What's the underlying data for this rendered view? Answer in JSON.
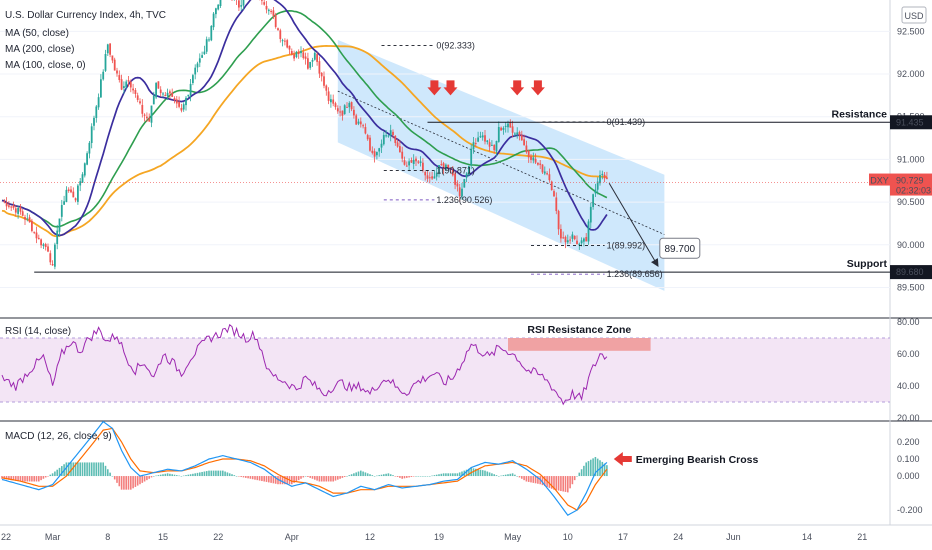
{
  "header": {
    "title": "U.S. Dollar Currency Index, 4h, TVC",
    "currency": "USD",
    "legend": [
      "MA (50, close)",
      "MA (200, close)",
      "MA (100, close, 0)"
    ]
  },
  "colors": {
    "up": "#26a69a",
    "down": "#ef5350",
    "ma50": "#3b2e9e",
    "ma200": "#f5a623",
    "ma100": "#2e9e4f",
    "channel": "#bbdefb",
    "rsi": "#9c27b0",
    "rsi_band": "#f3e5f5",
    "macd": "#2196f3",
    "signal": "#ff6d00",
    "arrow": "#e53935",
    "axis_bg": "#ffffff"
  },
  "chart_data": [
    {
      "name": "price",
      "type": "candlestick",
      "ylim": [
        89.4,
        92.75
      ],
      "y_ticks": [
        "92.500",
        "92.000",
        "91.500",
        "91.000",
        "90.500",
        "90.000",
        "89.500"
      ],
      "x_ticks": [
        "22",
        "Mar",
        "8",
        "15",
        "22",
        "Apr",
        "12",
        "19",
        "May",
        "10",
        "17",
        "24",
        "Jun",
        "14",
        "21"
      ],
      "current_price": "90.729",
      "countdown": "02:32:03",
      "symbol_tag": "DXY",
      "levels": [
        {
          "label": "Resistance",
          "value": "91.435"
        },
        {
          "label": "Support",
          "value": "89.680"
        }
      ],
      "fib_labels": [
        "0(92.333)",
        "0(91.439)",
        "1(90.871)",
        "1.236(90.526)",
        "1(89.992)",
        "1.236(89.656)"
      ],
      "target_label": "89.700",
      "path": [
        [
          0,
          90.52
        ],
        [
          4,
          90.45
        ],
        [
          8,
          90.38
        ],
        [
          12,
          90.25
        ],
        [
          16,
          90.05
        ],
        [
          20,
          89.95
        ],
        [
          22,
          89.72
        ],
        [
          24,
          90.2
        ],
        [
          28,
          90.65
        ],
        [
          32,
          90.55
        ],
        [
          36,
          90.95
        ],
        [
          40,
          91.5
        ],
        [
          43,
          91.9
        ],
        [
          46,
          92.35
        ],
        [
          49,
          92.05
        ],
        [
          52,
          91.85
        ],
        [
          55,
          91.95
        ],
        [
          58,
          91.75
        ],
        [
          61,
          91.55
        ],
        [
          64,
          91.45
        ],
        [
          67,
          91.9
        ],
        [
          70,
          91.75
        ],
        [
          72,
          91.8
        ],
        [
          75,
          91.65
        ],
        [
          78,
          91.55
        ],
        [
          81,
          91.8
        ],
        [
          84,
          92.1
        ],
        [
          87,
          92.2
        ],
        [
          90,
          92.45
        ],
        [
          92,
          92.7
        ],
        [
          94,
          92.85
        ],
        [
          97,
          92.95
        ],
        [
          100,
          92.9
        ],
        [
          103,
          92.8
        ],
        [
          106,
          92.95
        ],
        [
          109,
          93.05
        ],
        [
          112,
          92.95
        ],
        [
          115,
          92.8
        ],
        [
          118,
          92.65
        ],
        [
          121,
          92.45
        ],
        [
          124,
          92.35
        ],
        [
          127,
          92.2
        ],
        [
          130,
          92.3
        ],
        [
          133,
          92.1
        ],
        [
          136,
          92.25
        ],
        [
          139,
          91.95
        ],
        [
          142,
          91.7
        ],
        [
          145,
          91.6
        ],
        [
          148,
          91.55
        ],
        [
          151,
          91.7
        ],
        [
          154,
          91.45
        ],
        [
          157,
          91.4
        ],
        [
          160,
          91.1
        ],
        [
          163,
          91.05
        ],
        [
          166,
          91.25
        ],
        [
          169,
          91.3
        ],
        [
          172,
          91.15
        ],
        [
          175,
          90.9
        ],
        [
          178,
          90.95
        ],
        [
          181,
          91.0
        ],
        [
          184,
          90.8
        ],
        [
          187,
          90.75
        ],
        [
          190,
          90.9
        ],
        [
          193,
          90.95
        ],
        [
          196,
          90.8
        ],
        [
          199,
          90.6
        ],
        [
          202,
          90.85
        ],
        [
          205,
          91.2
        ],
        [
          208,
          91.3
        ],
        [
          211,
          91.2
        ],
        [
          214,
          91.1
        ],
        [
          216,
          91.35
        ],
        [
          219,
          91.4
        ],
        [
          222,
          91.35
        ],
        [
          225,
          91.3
        ],
        [
          228,
          91.1
        ],
        [
          231,
          91.0
        ],
        [
          234,
          90.9
        ],
        [
          237,
          90.85
        ],
        [
          240,
          90.6
        ],
        [
          242,
          90.15
        ],
        [
          245,
          90.05
        ],
        [
          248,
          90.1
        ],
        [
          251,
          90.0
        ],
        [
          254,
          90.05
        ],
        [
          257,
          90.6
        ],
        [
          260,
          90.85
        ],
        [
          263,
          90.73
        ]
      ]
    },
    {
      "name": "RSI",
      "type": "line",
      "title": "RSI (14, close)",
      "ylim": [
        20,
        80
      ],
      "y_ticks": [
        "80.00",
        "60.00",
        "40.00",
        "20.00"
      ],
      "band": [
        30,
        70
      ],
      "annotation": "RSI Resistance Zone",
      "values": [
        [
          0,
          45
        ],
        [
          6,
          40
        ],
        [
          12,
          50
        ],
        [
          18,
          58
        ],
        [
          22,
          40
        ],
        [
          26,
          60
        ],
        [
          30,
          68
        ],
        [
          34,
          62
        ],
        [
          38,
          70
        ],
        [
          42,
          75
        ],
        [
          46,
          68
        ],
        [
          50,
          72
        ],
        [
          54,
          58
        ],
        [
          58,
          50
        ],
        [
          62,
          55
        ],
        [
          66,
          45
        ],
        [
          70,
          60
        ],
        [
          74,
          55
        ],
        [
          78,
          48
        ],
        [
          82,
          58
        ],
        [
          86,
          64
        ],
        [
          90,
          70
        ],
        [
          94,
          72
        ],
        [
          98,
          76
        ],
        [
          102,
          74
        ],
        [
          106,
          70
        ],
        [
          110,
          72
        ],
        [
          113,
          62
        ],
        [
          116,
          48
        ],
        [
          120,
          45
        ],
        [
          124,
          42
        ],
        [
          128,
          38
        ],
        [
          132,
          45
        ],
        [
          136,
          40
        ],
        [
          140,
          35
        ],
        [
          144,
          40
        ],
        [
          148,
          42
        ],
        [
          152,
          38
        ],
        [
          156,
          40
        ],
        [
          160,
          35
        ],
        [
          164,
          42
        ],
        [
          168,
          45
        ],
        [
          172,
          38
        ],
        [
          176,
          36
        ],
        [
          180,
          42
        ],
        [
          184,
          45
        ],
        [
          188,
          48
        ],
        [
          192,
          42
        ],
        [
          196,
          45
        ],
        [
          200,
          55
        ],
        [
          204,
          66
        ],
        [
          208,
          62
        ],
        [
          212,
          58
        ],
        [
          216,
          64
        ],
        [
          220,
          62
        ],
        [
          224,
          58
        ],
        [
          228,
          50
        ],
        [
          232,
          48
        ],
        [
          236,
          45
        ],
        [
          240,
          38
        ],
        [
          244,
          30
        ],
        [
          248,
          35
        ],
        [
          252,
          32
        ],
        [
          256,
          48
        ],
        [
          260,
          60
        ],
        [
          263,
          58
        ]
      ]
    },
    {
      "name": "MACD",
      "type": "line",
      "title": "MACD (12, 26, close, 9)",
      "ylim": [
        -0.27,
        0.3
      ],
      "y_ticks": [
        "0.200",
        "0.100",
        "0.000",
        "-0.200"
      ],
      "annotation": "Emerging Bearish Cross",
      "macd": [
        [
          0,
          -0.02
        ],
        [
          8,
          -0.05
        ],
        [
          16,
          -0.08
        ],
        [
          22,
          -0.05
        ],
        [
          28,
          0.05
        ],
        [
          34,
          0.15
        ],
        [
          40,
          0.25
        ],
        [
          44,
          0.32
        ],
        [
          48,
          0.28
        ],
        [
          52,
          0.15
        ],
        [
          56,
          0.05
        ],
        [
          60,
          0.0
        ],
        [
          66,
          0.02
        ],
        [
          72,
          0.04
        ],
        [
          78,
          0.03
        ],
        [
          84,
          0.06
        ],
        [
          90,
          0.1
        ],
        [
          96,
          0.12
        ],
        [
          102,
          0.1
        ],
        [
          108,
          0.08
        ],
        [
          114,
          0.04
        ],
        [
          120,
          -0.02
        ],
        [
          126,
          -0.06
        ],
        [
          132,
          -0.04
        ],
        [
          138,
          -0.08
        ],
        [
          144,
          -0.12
        ],
        [
          150,
          -0.1
        ],
        [
          156,
          -0.06
        ],
        [
          162,
          -0.08
        ],
        [
          168,
          -0.05
        ],
        [
          174,
          -0.07
        ],
        [
          180,
          -0.06
        ],
        [
          186,
          -0.05
        ],
        [
          192,
          -0.03
        ],
        [
          198,
          -0.02
        ],
        [
          204,
          0.05
        ],
        [
          210,
          0.08
        ],
        [
          216,
          0.07
        ],
        [
          222,
          0.09
        ],
        [
          228,
          0.04
        ],
        [
          234,
          -0.02
        ],
        [
          240,
          -0.12
        ],
        [
          246,
          -0.23
        ],
        [
          250,
          -0.2
        ],
        [
          254,
          -0.1
        ],
        [
          258,
          0.02
        ],
        [
          263,
          0.08
        ]
      ],
      "signal": [
        [
          0,
          -0.01
        ],
        [
          8,
          -0.03
        ],
        [
          16,
          -0.06
        ],
        [
          22,
          -0.06
        ],
        [
          28,
          0.0
        ],
        [
          34,
          0.1
        ],
        [
          40,
          0.2
        ],
        [
          44,
          0.27
        ],
        [
          48,
          0.28
        ],
        [
          52,
          0.2
        ],
        [
          56,
          0.1
        ],
        [
          60,
          0.03
        ],
        [
          66,
          0.02
        ],
        [
          72,
          0.03
        ],
        [
          78,
          0.03
        ],
        [
          84,
          0.05
        ],
        [
          90,
          0.08
        ],
        [
          96,
          0.1
        ],
        [
          102,
          0.1
        ],
        [
          108,
          0.09
        ],
        [
          114,
          0.06
        ],
        [
          120,
          0.01
        ],
        [
          126,
          -0.03
        ],
        [
          132,
          -0.04
        ],
        [
          138,
          -0.06
        ],
        [
          144,
          -0.1
        ],
        [
          150,
          -0.1
        ],
        [
          156,
          -0.08
        ],
        [
          162,
          -0.08
        ],
        [
          168,
          -0.06
        ],
        [
          174,
          -0.06
        ],
        [
          180,
          -0.06
        ],
        [
          186,
          -0.05
        ],
        [
          192,
          -0.04
        ],
        [
          198,
          -0.03
        ],
        [
          204,
          0.02
        ],
        [
          210,
          0.06
        ],
        [
          216,
          0.07
        ],
        [
          222,
          0.08
        ],
        [
          228,
          0.06
        ],
        [
          234,
          0.01
        ],
        [
          240,
          -0.07
        ],
        [
          246,
          -0.17
        ],
        [
          250,
          -0.2
        ],
        [
          254,
          -0.15
        ],
        [
          258,
          -0.05
        ],
        [
          263,
          0.04
        ]
      ]
    }
  ]
}
